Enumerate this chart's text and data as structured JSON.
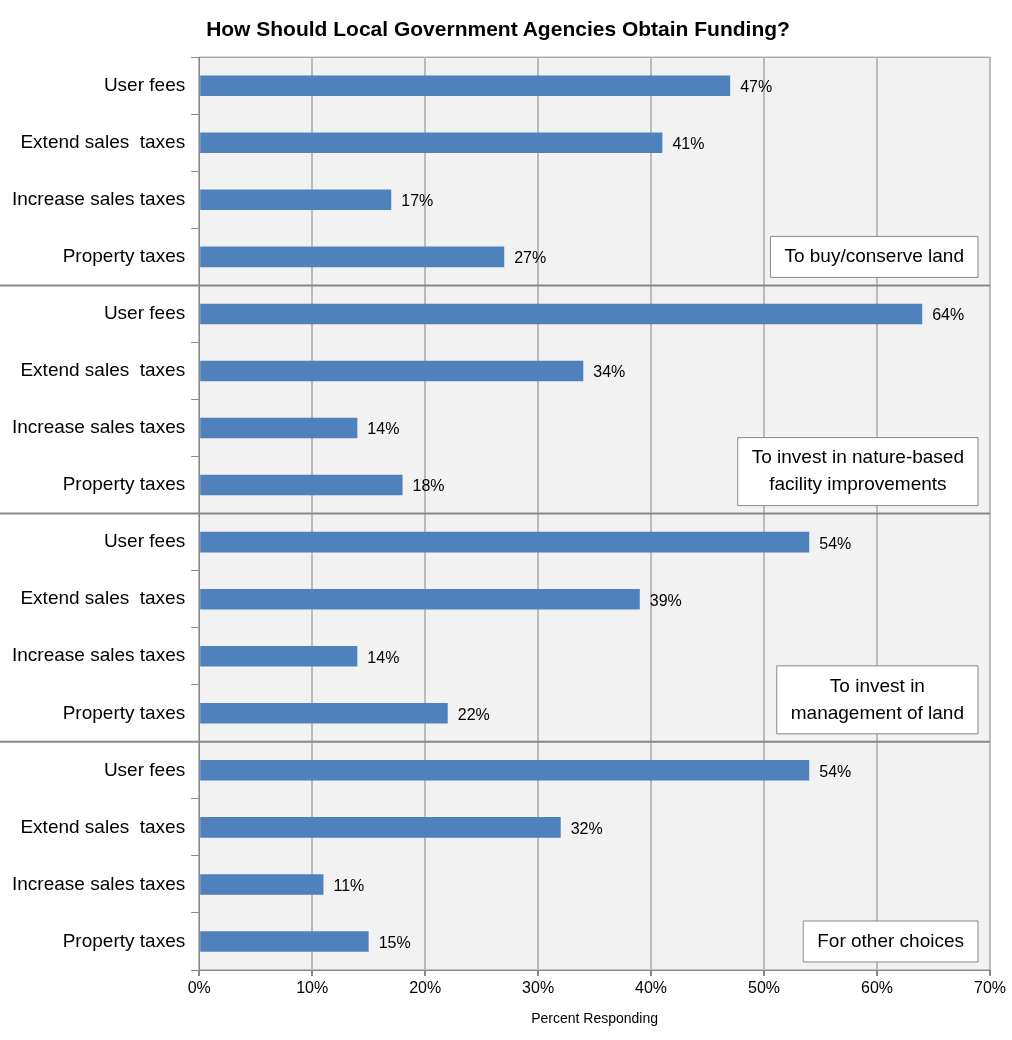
{
  "chart_data": {
    "type": "bar",
    "orientation": "horizontal",
    "title": "How Should Local Government Agencies Obtain Funding?",
    "xlabel": "Percent Responding",
    "categories": [
      "User fees",
      "Extend sales  taxes",
      "Increase sales taxes",
      "Property taxes",
      "User fees",
      "Extend sales  taxes",
      "Increase sales taxes",
      "Property taxes",
      "User fees",
      "Extend sales  taxes",
      "Increase sales taxes",
      "Property taxes",
      "User fees",
      "Extend sales  taxes",
      "Increase sales taxes",
      "Property taxes"
    ],
    "values": [
      47,
      41,
      17,
      27,
      64,
      34,
      14,
      18,
      54,
      39,
      14,
      22,
      54,
      32,
      11,
      15
    ],
    "value_labels": [
      "47%",
      "41%",
      "17%",
      "27%",
      "64%",
      "34%",
      "14%",
      "18%",
      "54%",
      "39%",
      "14%",
      "22%",
      "54%",
      "32%",
      "11%",
      "15%"
    ],
    "color": "#4f81bd",
    "xlim": [
      0,
      70
    ],
    "xticks": [
      {
        "value": 0,
        "label": "0%"
      },
      {
        "value": 10,
        "label": "10%"
      },
      {
        "value": 20,
        "label": "20%"
      },
      {
        "value": 30,
        "label": "30%"
      },
      {
        "value": 40,
        "label": "40%"
      },
      {
        "value": 50,
        "label": "50%"
      },
      {
        "value": 60,
        "label": "60%"
      },
      {
        "value": 70,
        "label": "70%"
      }
    ],
    "grid": "x",
    "legend": false,
    "annotations": [
      "To buy/conserve land",
      "To invest in nature-based\nfacility improvements",
      "To invest in\nmanagement of land",
      "For other choices"
    ]
  }
}
